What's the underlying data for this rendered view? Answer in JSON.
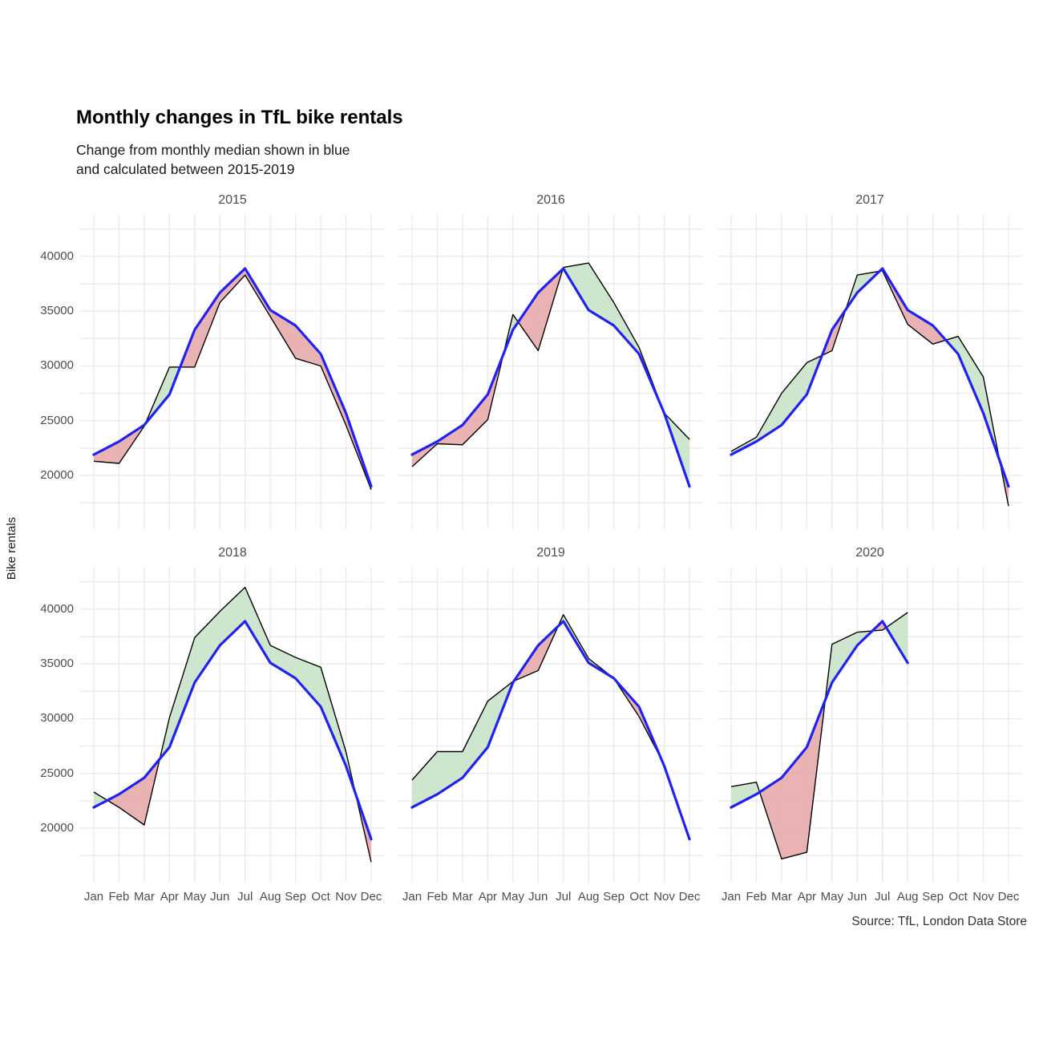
{
  "title": "Monthly changes in TfL bike rentals",
  "subtitle_line1": "Change from monthly median shown in blue",
  "subtitle_line2": "and calculated between 2015-2019",
  "caption": "Source: TfL, London Data Store",
  "ylabel": "Bike rentals",
  "chart_data": {
    "type": "line",
    "description": "Six facets (2015-2020). Black line = actual monthly bike rentals; blue line = monthly median 2015-2019; ribbon green where actual > median, red where actual < median.",
    "categories": [
      "Jan",
      "Feb",
      "Mar",
      "Apr",
      "May",
      "Jun",
      "Jul",
      "Aug",
      "Sep",
      "Oct",
      "Nov",
      "Dec"
    ],
    "y_ticks": [
      20000,
      25000,
      30000,
      35000,
      40000
    ],
    "ylim": [
      15100,
      43800
    ],
    "grid": "on",
    "median": [
      21900,
      23100,
      24600,
      27400,
      33300,
      36700,
      38900,
      35100,
      33700,
      31100,
      25700,
      19000
    ],
    "facets": [
      {
        "year": "2015",
        "values": [
          21300,
          21100,
          24500,
          29900,
          29900,
          35800,
          38300,
          34500,
          30700,
          30000,
          24600,
          18700
        ]
      },
      {
        "year": "2016",
        "values": [
          20800,
          22900,
          22800,
          25100,
          34700,
          31400,
          39000,
          39400,
          35800,
          31700,
          25700,
          23300
        ]
      },
      {
        "year": "2017",
        "values": [
          22200,
          23500,
          27500,
          30300,
          31400,
          38300,
          38700,
          33800,
          32000,
          32700,
          29000,
          17200
        ]
      },
      {
        "year": "2018",
        "values": [
          23300,
          21900,
          20300,
          30100,
          37400,
          39800,
          42000,
          36700,
          35600,
          34700,
          27000,
          16900
        ]
      },
      {
        "year": "2019",
        "values": [
          24400,
          27000,
          27000,
          31600,
          33400,
          34400,
          39500,
          35500,
          33700,
          30200,
          25800,
          19100
        ]
      },
      {
        "year": "2020",
        "values": [
          23800,
          24200,
          17200,
          17800,
          36800,
          37900,
          38100,
          39700,
          null,
          null,
          null,
          null
        ]
      }
    ],
    "colors": {
      "median_line": "#2222ee",
      "actual_line": "#000000",
      "ribbon_above": "#c7e3c6",
      "ribbon_below": "#e6a8aa",
      "gridline": "#e9e9e9"
    }
  }
}
